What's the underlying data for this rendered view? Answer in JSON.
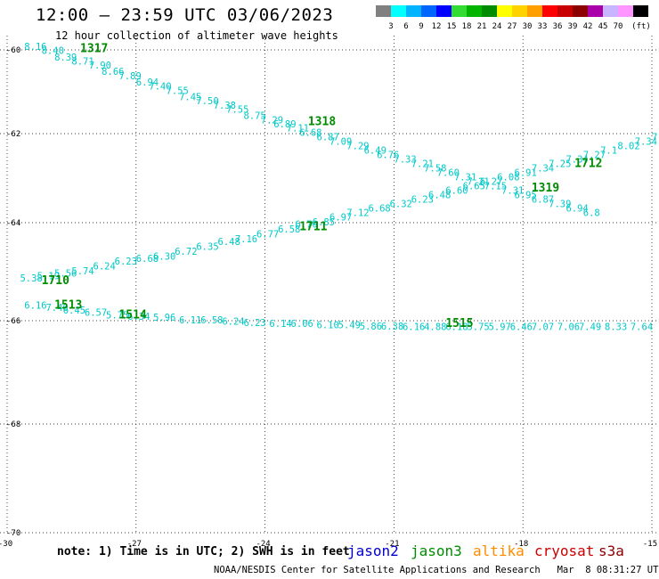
{
  "header": {
    "title": "12:00 – 23:59 UTC 03/06/2023",
    "subtitle": "12 hour collection of altimeter wave heights"
  },
  "legend": {
    "unit": "(ft)",
    "swatches": [
      {
        "color": "#808080",
        "label": ""
      },
      {
        "color": "#00ffff",
        "label": "3"
      },
      {
        "color": "#00b4ff",
        "label": "6"
      },
      {
        "color": "#0064ff",
        "label": "9"
      },
      {
        "color": "#0000ff",
        "label": "12"
      },
      {
        "color": "#32dc32",
        "label": "15"
      },
      {
        "color": "#00b400",
        "label": "18"
      },
      {
        "color": "#008c00",
        "label": "21"
      },
      {
        "color": "#ffff00",
        "label": "24"
      },
      {
        "color": "#ffd200",
        "label": "27"
      },
      {
        "color": "#ffa000",
        "label": "30"
      },
      {
        "color": "#ff0000",
        "label": "33"
      },
      {
        "color": "#c80000",
        "label": "36"
      },
      {
        "color": "#8c0000",
        "label": "39"
      },
      {
        "color": "#aa00aa",
        "label": "42"
      },
      {
        "color": "#c8b4ff",
        "label": "45"
      },
      {
        "color": "#ff96ff",
        "label": "70"
      },
      {
        "color": "#000000",
        "label": ""
      }
    ]
  },
  "axes": {
    "lon_ticks": [
      {
        "value": -30,
        "label": "-30"
      },
      {
        "value": -27,
        "label": "-27"
      },
      {
        "value": -24,
        "label": "-24"
      },
      {
        "value": -21,
        "label": "-21"
      },
      {
        "value": -18,
        "label": "-18"
      },
      {
        "value": -15,
        "label": "-15"
      }
    ],
    "lat_ticks": [
      {
        "value": -60,
        "label": "-60"
      },
      {
        "value": -62,
        "label": "-62"
      },
      {
        "value": -64,
        "label": "-64"
      },
      {
        "value": -66,
        "label": "-66"
      },
      {
        "value": -68,
        "label": "-68"
      },
      {
        "value": -70,
        "label": "-70"
      }
    ]
  },
  "tracks": [
    {
      "labels": [
        {
          "text": "8.16",
          "lon": -29.6,
          "lat": -60.0,
          "color": "#00c8c8"
        },
        {
          "text": "8.40",
          "lon": -29.2,
          "lat": -60.1,
          "color": "#00c8c8"
        },
        {
          "text": "8.39",
          "lon": -28.9,
          "lat": -60.25,
          "color": "#00c8c8"
        },
        {
          "text": "8.71",
          "lon": -28.5,
          "lat": -60.35,
          "color": "#00c8c8"
        },
        {
          "text": "7.90",
          "lon": -28.1,
          "lat": -60.45,
          "color": "#00c8c8"
        },
        {
          "text": "8.66",
          "lon": -27.8,
          "lat": -60.6,
          "color": "#00c8c8"
        },
        {
          "text": "7.89",
          "lon": -27.4,
          "lat": -60.7,
          "color": "#00c8c8"
        },
        {
          "text": "6.94",
          "lon": -27.0,
          "lat": -60.85,
          "color": "#00c8c8"
        },
        {
          "text": "7.40",
          "lon": -26.7,
          "lat": -60.95,
          "color": "#00c8c8"
        },
        {
          "text": "7.55",
          "lon": -26.3,
          "lat": -61.05,
          "color": "#00c8c8"
        },
        {
          "text": "7.45",
          "lon": -26.0,
          "lat": -61.2,
          "color": "#00c8c8"
        },
        {
          "text": "7.50",
          "lon": -25.6,
          "lat": -61.3,
          "color": "#00c8c8"
        },
        {
          "text": "7.38",
          "lon": -25.2,
          "lat": -61.4,
          "color": "#00c8c8"
        },
        {
          "text": "7.55",
          "lon": -24.9,
          "lat": -61.5,
          "color": "#00c8c8"
        },
        {
          "text": "8.75",
          "lon": -24.5,
          "lat": -61.65,
          "color": "#00c8c8"
        },
        {
          "text": "7.29",
          "lon": -24.1,
          "lat": -61.75,
          "color": "#00c8c8"
        },
        {
          "text": "6.89",
          "lon": -23.8,
          "lat": -61.85,
          "color": "#00c8c8"
        },
        {
          "text": "7.11",
          "lon": -23.5,
          "lat": -61.95,
          "color": "#00c8c8"
        },
        {
          "text": "6.68",
          "lon": -23.2,
          "lat": -62.05,
          "color": "#00c8c8"
        },
        {
          "text": "6.87",
          "lon": -22.8,
          "lat": -62.15,
          "color": "#00c8c8"
        },
        {
          "text": "7.09",
          "lon": -22.5,
          "lat": -62.25,
          "color": "#00c8c8"
        },
        {
          "text": "7.29",
          "lon": -22.1,
          "lat": -62.35,
          "color": "#00c8c8"
        },
        {
          "text": "6.49",
          "lon": -21.7,
          "lat": -62.45,
          "color": "#00c8c8"
        },
        {
          "text": "6.76",
          "lon": -21.4,
          "lat": -62.55,
          "color": "#00c8c8"
        },
        {
          "text": "7.33",
          "lon": -21.0,
          "lat": -62.65,
          "color": "#00c8c8"
        },
        {
          "text": "7.21",
          "lon": -20.6,
          "lat": -62.75,
          "color": "#00c8c8"
        },
        {
          "text": "7.58",
          "lon": -20.3,
          "lat": -62.85,
          "color": "#00c8c8"
        },
        {
          "text": "7.60",
          "lon": -20.0,
          "lat": -62.95,
          "color": "#00c8c8"
        },
        {
          "text": "7.31",
          "lon": -19.6,
          "lat": -63.05,
          "color": "#00c8c8"
        },
        {
          "text": "7.21",
          "lon": -19.3,
          "lat": -63.15,
          "color": "#00c8c8"
        },
        {
          "text": "7.15",
          "lon": -18.9,
          "lat": -63.25,
          "color": "#00c8c8"
        },
        {
          "text": "7.31",
          "lon": -18.5,
          "lat": -63.35,
          "color": "#00c8c8"
        },
        {
          "text": "6.95",
          "lon": -18.2,
          "lat": -63.45,
          "color": "#00c8c8"
        },
        {
          "text": "6.87",
          "lon": -17.8,
          "lat": -63.55,
          "color": "#00c8c8"
        },
        {
          "text": "7.39",
          "lon": -17.4,
          "lat": -63.65,
          "color": "#00c8c8"
        },
        {
          "text": "6.94",
          "lon": -17.0,
          "lat": -63.75,
          "color": "#00c8c8"
        },
        {
          "text": "6.8",
          "lon": -16.6,
          "lat": -63.85,
          "color": "#00c8c8"
        }
      ]
    },
    {
      "labels": [
        {
          "text": "5.38",
          "lon": -29.7,
          "lat": -65.2,
          "color": "#00c8c8"
        },
        {
          "text": "5.19",
          "lon": -29.3,
          "lat": -65.15,
          "color": "#00c8c8"
        },
        {
          "text": "5.56",
          "lon": -28.9,
          "lat": -65.1,
          "color": "#00c8c8"
        },
        {
          "text": "5.74",
          "lon": -28.5,
          "lat": -65.05,
          "color": "#00c8c8"
        },
        {
          "text": "6.24",
          "lon": -28.0,
          "lat": -64.95,
          "color": "#00c8c8"
        },
        {
          "text": "6.23",
          "lon": -27.5,
          "lat": -64.85,
          "color": "#00c8c8"
        },
        {
          "text": "6.68",
          "lon": -27.0,
          "lat": -64.8,
          "color": "#00c8c8"
        },
        {
          "text": "6.30",
          "lon": -26.6,
          "lat": -64.75,
          "color": "#00c8c8"
        },
        {
          "text": "6.72",
          "lon": -26.1,
          "lat": -64.65,
          "color": "#00c8c8"
        },
        {
          "text": "6.35",
          "lon": -25.6,
          "lat": -64.55,
          "color": "#00c8c8"
        },
        {
          "text": "6.48",
          "lon": -25.1,
          "lat": -64.45,
          "color": "#00c8c8"
        },
        {
          "text": "7.16",
          "lon": -24.7,
          "lat": -64.4,
          "color": "#00c8c8"
        },
        {
          "text": "6.77",
          "lon": -24.2,
          "lat": -64.3,
          "color": "#00c8c8"
        },
        {
          "text": "6.58",
          "lon": -23.7,
          "lat": -64.2,
          "color": "#00c8c8"
        },
        {
          "text": "6.70",
          "lon": -23.3,
          "lat": -64.1,
          "color": "#00c8c8"
        },
        {
          "text": "6.85",
          "lon": -22.9,
          "lat": -64.05,
          "color": "#00c8c8"
        },
        {
          "text": "6.97",
          "lon": -22.5,
          "lat": -63.95,
          "color": "#00c8c8"
        },
        {
          "text": "7.12",
          "lon": -22.1,
          "lat": -63.85,
          "color": "#00c8c8"
        },
        {
          "text": "6.68",
          "lon": -21.6,
          "lat": -63.75,
          "color": "#00c8c8"
        },
        {
          "text": "6.32",
          "lon": -21.1,
          "lat": -63.65,
          "color": "#00c8c8"
        },
        {
          "text": "6.23",
          "lon": -20.6,
          "lat": -63.55,
          "color": "#00c8c8"
        },
        {
          "text": "6.48",
          "lon": -20.2,
          "lat": -63.45,
          "color": "#00c8c8"
        },
        {
          "text": "6.60",
          "lon": -19.8,
          "lat": -63.35,
          "color": "#00c8c8"
        },
        {
          "text": "6.65",
          "lon": -19.4,
          "lat": -63.25,
          "color": "#00c8c8"
        },
        {
          "text": "6.27",
          "lon": -19.0,
          "lat": -63.15,
          "color": "#00c8c8"
        },
        {
          "text": "6.08",
          "lon": -18.6,
          "lat": -63.05,
          "color": "#00c8c8"
        },
        {
          "text": "6.91",
          "lon": -18.2,
          "lat": -62.95,
          "color": "#00c8c8"
        },
        {
          "text": "7.34",
          "lon": -17.8,
          "lat": -62.85,
          "color": "#00c8c8"
        },
        {
          "text": "7.25",
          "lon": -17.4,
          "lat": -62.75,
          "color": "#00c8c8"
        },
        {
          "text": "7.34",
          "lon": -17.0,
          "lat": -62.65,
          "color": "#00c8c8"
        },
        {
          "text": "7.27",
          "lon": -16.6,
          "lat": -62.55,
          "color": "#00c8c8"
        },
        {
          "text": "7.1",
          "lon": -16.2,
          "lat": -62.45,
          "color": "#00c8c8"
        },
        {
          "text": "8.02",
          "lon": -15.8,
          "lat": -62.35,
          "color": "#00c8c8"
        },
        {
          "text": "7.34",
          "lon": -15.4,
          "lat": -62.25,
          "color": "#00c8c8"
        },
        {
          "text": "7",
          "lon": -15.0,
          "lat": -62.15,
          "color": "#00c8c8"
        }
      ]
    },
    {
      "labels": [
        {
          "text": "6.16",
          "lon": -29.6,
          "lat": -65.75,
          "color": "#00c8c8"
        },
        {
          "text": "7.46",
          "lon": -29.1,
          "lat": -65.8,
          "color": "#00c8c8"
        },
        {
          "text": "6.45",
          "lon": -28.7,
          "lat": -65.85,
          "color": "#00c8c8"
        },
        {
          "text": "6.57",
          "lon": -28.2,
          "lat": -65.9,
          "color": "#00c8c8"
        },
        {
          "text": "5.75",
          "lon": -27.7,
          "lat": -65.95,
          "color": "#00c8c8"
        },
        {
          "text": "6.34",
          "lon": -27.2,
          "lat": -65.98,
          "color": "#00c8c8"
        },
        {
          "text": "5.96",
          "lon": -26.6,
          "lat": -66.0,
          "color": "#00c8c8"
        },
        {
          "text": "6.11",
          "lon": -26.0,
          "lat": -66.05,
          "color": "#00c8c8"
        },
        {
          "text": "6.58",
          "lon": -25.5,
          "lat": -66.05,
          "color": "#00c8c8"
        },
        {
          "text": "6.24",
          "lon": -25.0,
          "lat": -66.08,
          "color": "#00c8c8"
        },
        {
          "text": "6.23",
          "lon": -24.5,
          "lat": -66.1,
          "color": "#00c8c8"
        },
        {
          "text": "6.14",
          "lon": -23.9,
          "lat": -66.12,
          "color": "#00c8c8"
        },
        {
          "text": "6.06",
          "lon": -23.4,
          "lat": -66.12,
          "color": "#00c8c8"
        },
        {
          "text": "6.10",
          "lon": -22.8,
          "lat": -66.15,
          "color": "#00c8c8"
        },
        {
          "text": "5.49",
          "lon": -22.3,
          "lat": -66.15,
          "color": "#00c8c8"
        },
        {
          "text": "5.86",
          "lon": -21.8,
          "lat": -66.17,
          "color": "#00c8c8"
        },
        {
          "text": "6.38",
          "lon": -21.3,
          "lat": -66.17,
          "color": "#00c8c8"
        },
        {
          "text": "6.16",
          "lon": -20.8,
          "lat": -66.18,
          "color": "#00c8c8"
        },
        {
          "text": "4.88",
          "lon": -20.3,
          "lat": -66.18,
          "color": "#00c8c8"
        },
        {
          "text": "6.18",
          "lon": -19.8,
          "lat": -66.18,
          "color": "#00c8c8"
        },
        {
          "text": "5.75",
          "lon": -19.3,
          "lat": -66.18,
          "color": "#00c8c8"
        },
        {
          "text": "5.97",
          "lon": -18.8,
          "lat": -66.18,
          "color": "#00c8c8"
        },
        {
          "text": "6.46",
          "lon": -18.3,
          "lat": -66.18,
          "color": "#00c8c8"
        },
        {
          "text": "7.07",
          "lon": -17.8,
          "lat": -66.18,
          "color": "#00c8c8"
        },
        {
          "text": "7.06",
          "lon": -17.2,
          "lat": -66.18,
          "color": "#00c8c8"
        },
        {
          "text": "7.49",
          "lon": -16.7,
          "lat": -66.18,
          "color": "#00c8c8"
        },
        {
          "text": "8.33",
          "lon": -16.1,
          "lat": -66.18,
          "color": "#00c8c8"
        },
        {
          "text": "7.64",
          "lon": -15.5,
          "lat": -66.18,
          "color": "#00c8c8"
        }
      ]
    }
  ],
  "time_labels": [
    {
      "text": "1317",
      "lon": -28.3,
      "lat": -60.05,
      "color": "#008c00"
    },
    {
      "text": "1318",
      "lon": -23.0,
      "lat": -61.8,
      "color": "#008c00"
    },
    {
      "text": "1712",
      "lon": -16.8,
      "lat": -62.75,
      "color": "#008c00"
    },
    {
      "text": "1319",
      "lon": -17.8,
      "lat": -63.3,
      "color": "#008c00"
    },
    {
      "text": "1711",
      "lon": -23.2,
      "lat": -64.15,
      "color": "#008c00"
    },
    {
      "text": "1710",
      "lon": -29.2,
      "lat": -65.25,
      "color": "#008c00"
    },
    {
      "text": "1513",
      "lon": -28.9,
      "lat": -65.75,
      "color": "#008c00"
    },
    {
      "text": "1514",
      "lon": -27.4,
      "lat": -65.95,
      "color": "#008c00"
    },
    {
      "text": "1515",
      "lon": -19.8,
      "lat": -66.12,
      "color": "#008c00"
    }
  ],
  "footer": {
    "note": "note: 1) Time is in UTC; 2) SWH is in feet",
    "satellites": [
      {
        "name": "jason2",
        "color": "#0000cc"
      },
      {
        "name": "jason3",
        "color": "#008c00"
      },
      {
        "name": "altika",
        "color": "#ff8c00"
      },
      {
        "name": "cryosat",
        "color": "#cc0000"
      },
      {
        "name": "s3a",
        "color": "#8c0000"
      }
    ],
    "credit": "NOAA/NESDIS Center for Satellite Applications and Research   Mar  8 08:31:27 UTC 2023"
  }
}
